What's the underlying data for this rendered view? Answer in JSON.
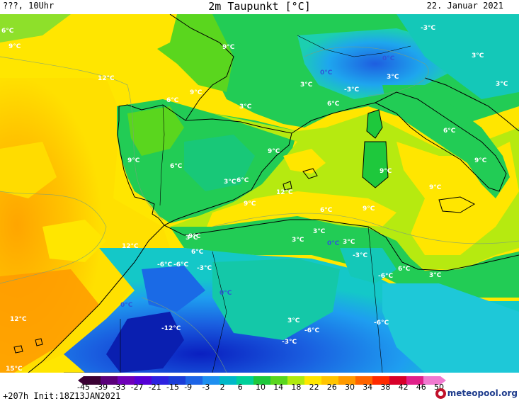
{
  "header": {
    "left": "???, 10Uhr",
    "title": "2m Taupunkt [°C]",
    "date": "22. Januar 2021"
  },
  "footer": {
    "run_info": "+207h Init:18Z13JAN2021",
    "brand": "meteopool.org"
  },
  "colors": {
    "sea_base": "#ffd400",
    "land": "#2bd66d"
  },
  "legend": {
    "ticks": [
      "-45",
      "-39",
      "-33",
      "-27",
      "-21",
      "-15",
      "-9",
      "-3",
      "2",
      "6",
      "10",
      "14",
      "18",
      "22",
      "26",
      "30",
      "34",
      "38",
      "42",
      "46",
      "50"
    ],
    "colors": [
      "#3a0033",
      "#5a007a",
      "#6e00b8",
      "#5500d6",
      "#2d22e0",
      "#1a3dd8",
      "#1d64e6",
      "#1e8ff0",
      "#00b8c8",
      "#00d09a",
      "#1ec83c",
      "#5ad61e",
      "#b0ea10",
      "#ffe600",
      "#ffc400",
      "#ff9a00",
      "#ff6400",
      "#ff2a00",
      "#d8002a",
      "#e0208a",
      "#f07ad0"
    ]
  },
  "labels": [
    {
      "t": "6°C",
      "cold": false
    },
    {
      "t": "9°C",
      "cold": false
    },
    {
      "t": "12°C",
      "cold": false
    },
    {
      "t": "9°C",
      "cold": false
    },
    {
      "t": "9°C",
      "cold": false
    },
    {
      "t": "6°C",
      "cold": false
    },
    {
      "t": "3°C",
      "cold": false
    },
    {
      "t": "9°C",
      "cold": false
    },
    {
      "t": "6°C",
      "cold": false
    },
    {
      "t": "3°C",
      "cold": false
    },
    {
      "t": "6°C",
      "cold": false
    },
    {
      "t": "9°C",
      "cold": false
    },
    {
      "t": "12°C",
      "cold": false
    },
    {
      "t": "9°C",
      "cold": false
    },
    {
      "t": "9°C",
      "cold": false
    },
    {
      "t": "12°C",
      "cold": false
    },
    {
      "t": "12°C",
      "cold": false
    },
    {
      "t": "15°C",
      "cold": false
    },
    {
      "t": "-3°C",
      "cold": false
    },
    {
      "t": "0°C",
      "cold": true
    },
    {
      "t": "0°C",
      "cold": true
    },
    {
      "t": "3°C",
      "cold": false
    },
    {
      "t": "3°C",
      "cold": false
    },
    {
      "t": "3°C",
      "cold": false
    },
    {
      "t": "-3°C",
      "cold": false
    },
    {
      "t": "6°C",
      "cold": false
    },
    {
      "t": "3°C",
      "cold": false
    },
    {
      "t": "6°C",
      "cold": false
    },
    {
      "t": "9°C",
      "cold": false
    },
    {
      "t": "9°C",
      "cold": false
    },
    {
      "t": "9°C",
      "cold": false
    },
    {
      "t": "9°C",
      "cold": false
    },
    {
      "t": "6°C",
      "cold": false
    },
    {
      "t": "3°C",
      "cold": false
    },
    {
      "t": "3°C",
      "cold": false
    },
    {
      "t": "0°C",
      "cold": true
    },
    {
      "t": "3°C",
      "cold": false
    },
    {
      "t": "-3°C",
      "cold": false
    },
    {
      "t": "-6°C",
      "cold": false
    },
    {
      "t": "6°C",
      "cold": false
    },
    {
      "t": "3°C",
      "cold": false
    },
    {
      "t": "3°C",
      "cold": false
    },
    {
      "t": "-6°C",
      "cold": false
    },
    {
      "t": "-3°C",
      "cold": false
    },
    {
      "t": "6°C",
      "cold": false
    },
    {
      "t": "-6°C",
      "cold": false
    },
    {
      "t": "0°C",
      "cold": true
    },
    {
      "t": "0°C",
      "cold": true
    },
    {
      "t": "-12°C",
      "cold": false
    },
    {
      "t": "3°C",
      "cold": false
    },
    {
      "t": "-6°C",
      "cold": false
    },
    {
      "t": "-3°C",
      "cold": false
    },
    {
      "t": "-6°C",
      "cold": false
    }
  ]
}
